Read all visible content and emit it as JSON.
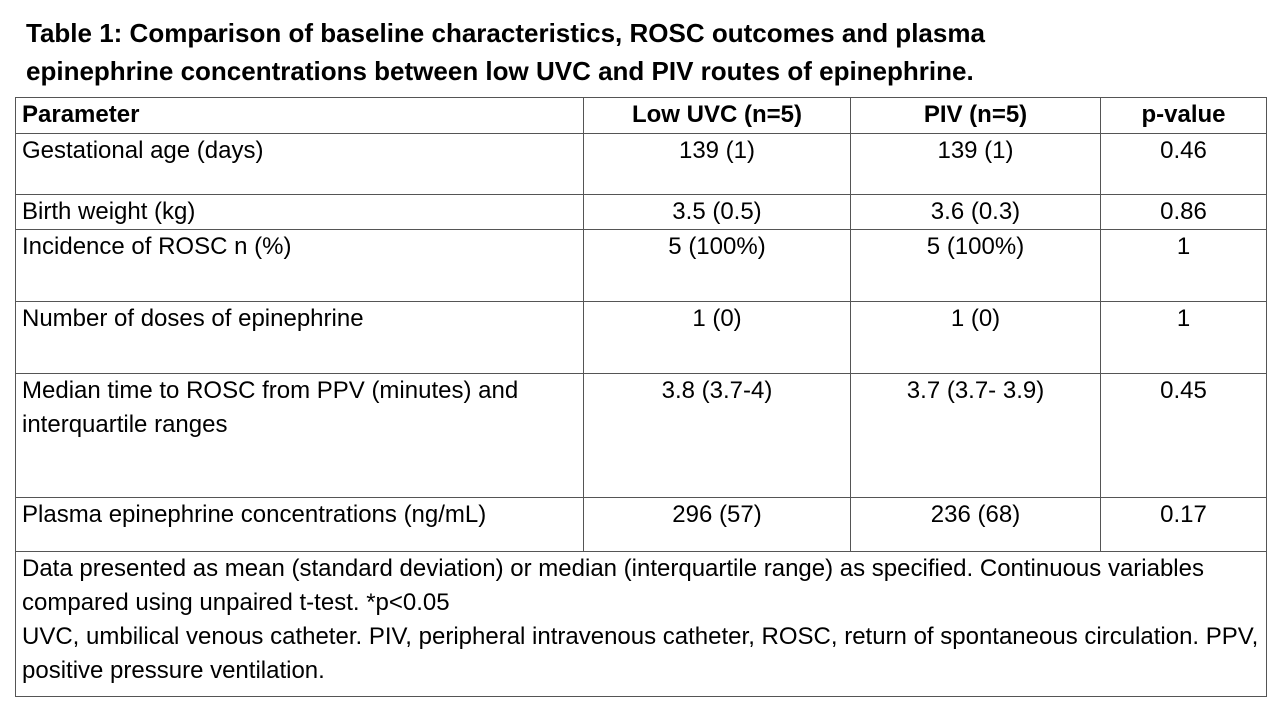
{
  "title": {
    "line1": "Table 1: Comparison of baseline characteristics, ROSC outcomes and plasma",
    "line2": "epinephrine concentrations between low UVC and PIV routes of epinephrine."
  },
  "table": {
    "headers": [
      "Parameter",
      "Low UVC (n=5)",
      "PIV (n=5)",
      "p-value"
    ],
    "rows": [
      {
        "parameter": "Gestational age (days)",
        "low_uvc": "139 (1)",
        "piv": "139 (1)",
        "p_value": "0.46"
      },
      {
        "parameter": "Birth weight (kg)",
        "low_uvc": "3.5 (0.5)",
        "piv": "3.6 (0.3)",
        "p_value": "0.86"
      },
      {
        "parameter": "Incidence of ROSC n (%)",
        "low_uvc": "5 (100%)",
        "piv": "5 (100%)",
        "p_value": "1"
      },
      {
        "parameter": "Number of doses of epinephrine",
        "low_uvc": "1 (0)",
        "piv": "1 (0)",
        "p_value": "1"
      },
      {
        "parameter": "Median time to ROSC from PPV (minutes) and interquartile ranges",
        "low_uvc": "3.8 (3.7-4)",
        "piv": "3.7 (3.7- 3.9)",
        "p_value": "0.45"
      },
      {
        "parameter": "Plasma epinephrine concentrations (ng/mL)",
        "low_uvc": "296 (57)",
        "piv": "236 (68)",
        "p_value": "0.17"
      }
    ],
    "footnote": {
      "line1": "Data presented as mean (standard deviation) or median (interquartile range) as specified. Continuous variables compared using unpaired t-test.   *p<0.05",
      "line2": "UVC, umbilical venous catheter. PIV, peripheral intravenous catheter, ROSC, return of spontaneous circulation. PPV,  positive pressure ventilation."
    }
  }
}
